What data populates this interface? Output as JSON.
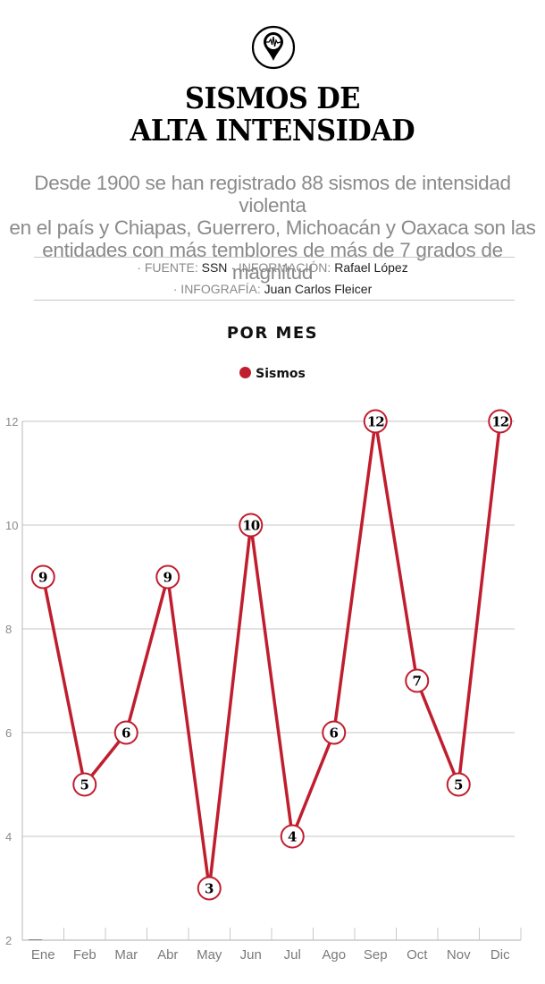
{
  "header": {
    "icon": "seismograph-location-pin-icon",
    "title_line1": "SISMOS DE",
    "title_line2": "ALTA INTENSIDAD",
    "subtitle_line1": "Desde 1900 se han registrado 88 sismos de intensidad violenta",
    "subtitle_line2": "en el país y Chiapas, Guerrero, Michoacán y Oaxaca son las",
    "subtitle_line3": "entidades con más temblores de más de 7 grados de magnitud"
  },
  "credits": {
    "fuente_label": "· FUENTE: ",
    "fuente_value": "SSN",
    "info_label": " · INFORMACIÓN: ",
    "info_value": "Rafael López",
    "infografia_label": "· INFOGRAFÍA: ",
    "infografia_value": "Juan Carlos Fleicer"
  },
  "section_title": "POR MES",
  "legend": {
    "label": "Sismos",
    "color": "#c01e2e"
  },
  "chart_data": {
    "type": "line",
    "title": "POR MES",
    "categories": [
      "Ene",
      "Feb",
      "Mar",
      "Abr",
      "May",
      "Jun",
      "Jul",
      "Ago",
      "Sep",
      "Oct",
      "Nov",
      "Dic"
    ],
    "series": [
      {
        "name": "Sismos",
        "color": "#c01e2e",
        "values": [
          9,
          5,
          6,
          9,
          3,
          10,
          4,
          6,
          12,
          7,
          5,
          12
        ]
      }
    ],
    "xlabel": "",
    "ylabel": "",
    "yticks": [
      2,
      4,
      6,
      8,
      10,
      12
    ],
    "ylim": [
      2,
      12
    ],
    "grid": true,
    "legend_position": "top",
    "data_labels": true
  }
}
